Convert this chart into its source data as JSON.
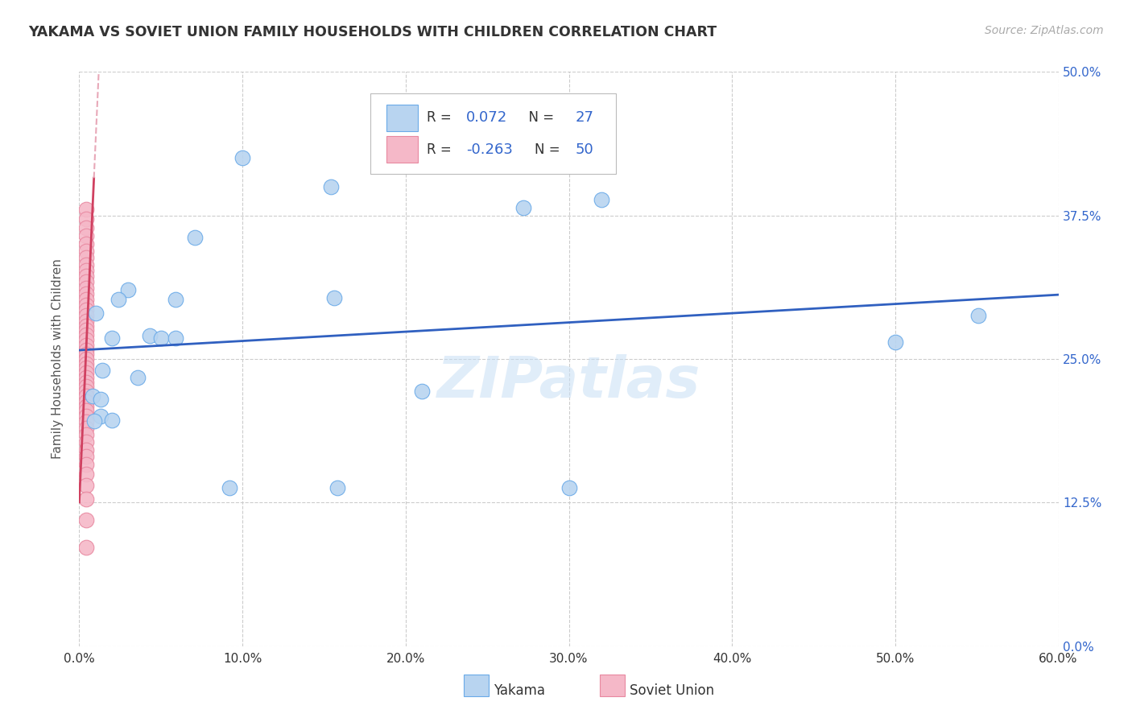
{
  "title": "YAKAMA VS SOVIET UNION FAMILY HOUSEHOLDS WITH CHILDREN CORRELATION CHART",
  "source": "Source: ZipAtlas.com",
  "ylabel_label": "Family Households with Children",
  "xlim": [
    0.0,
    0.6
  ],
  "ylim": [
    0.0,
    0.5
  ],
  "xticks": [
    0.0,
    0.1,
    0.2,
    0.3,
    0.4,
    0.5,
    0.6
  ],
  "yticks": [
    0.0,
    0.125,
    0.25,
    0.375,
    0.5
  ],
  "ytick_labels": [
    "0.0%",
    "12.5%",
    "25.0%",
    "37.5%",
    "50.0%"
  ],
  "xtick_labels": [
    "0.0%",
    "10.0%",
    "20.0%",
    "30.0%",
    "40.0%",
    "50.0%",
    "60.0%"
  ],
  "yakama_color": "#b8d4f0",
  "yakama_edge_color": "#6aaae8",
  "soviet_color": "#f5b8c8",
  "soviet_edge_color": "#e888a0",
  "trendline_yakama_color": "#3060c0",
  "trendline_soviet_solid_color": "#d04060",
  "trendline_soviet_dash_color": "#e8a8b8",
  "R_yakama": "0.072",
  "N_yakama": "27",
  "R_soviet": "-0.263",
  "N_soviet": "50",
  "watermark": "ZIPatlas",
  "background_color": "#ffffff",
  "grid_color": "#cccccc",
  "yakama_x": [
    0.01,
    0.03,
    0.02,
    0.043,
    0.014,
    0.036,
    0.008,
    0.013,
    0.013,
    0.009,
    0.02,
    0.024,
    0.059,
    0.05,
    0.059,
    0.071,
    0.1,
    0.154,
    0.156,
    0.158,
    0.21,
    0.272,
    0.32,
    0.3,
    0.551,
    0.5,
    0.092
  ],
  "yakama_y": [
    0.29,
    0.31,
    0.268,
    0.27,
    0.24,
    0.234,
    0.218,
    0.215,
    0.2,
    0.196,
    0.197,
    0.302,
    0.302,
    0.268,
    0.268,
    0.356,
    0.425,
    0.4,
    0.303,
    0.138,
    0.222,
    0.382,
    0.389,
    0.138,
    0.288,
    0.265,
    0.138
  ],
  "soviet_x": [
    0.004,
    0.004,
    0.004,
    0.004,
    0.004,
    0.004,
    0.004,
    0.004,
    0.004,
    0.004,
    0.004,
    0.004,
    0.004,
    0.004,
    0.004,
    0.004,
    0.004,
    0.004,
    0.004,
    0.004,
    0.004,
    0.004,
    0.004,
    0.004,
    0.004,
    0.004,
    0.004,
    0.004,
    0.004,
    0.004,
    0.004,
    0.004,
    0.004,
    0.004,
    0.004,
    0.004,
    0.004,
    0.004,
    0.004,
    0.004,
    0.004,
    0.004,
    0.004,
    0.004,
    0.004,
    0.004,
    0.004,
    0.004,
    0.004,
    0.004
  ],
  "soviet_y": [
    0.38,
    0.372,
    0.364,
    0.357,
    0.35,
    0.344,
    0.338,
    0.332,
    0.327,
    0.322,
    0.317,
    0.312,
    0.307,
    0.302,
    0.297,
    0.293,
    0.288,
    0.283,
    0.279,
    0.275,
    0.271,
    0.267,
    0.262,
    0.258,
    0.254,
    0.25,
    0.246,
    0.242,
    0.238,
    0.234,
    0.23,
    0.226,
    0.222,
    0.218,
    0.213,
    0.209,
    0.205,
    0.2,
    0.195,
    0.19,
    0.184,
    0.178,
    0.171,
    0.165,
    0.158,
    0.15,
    0.14,
    0.128,
    0.11,
    0.086
  ],
  "legend_R_color": "#3366cc",
  "legend_N_color": "#3366cc",
  "legend_label_color": "#333333"
}
